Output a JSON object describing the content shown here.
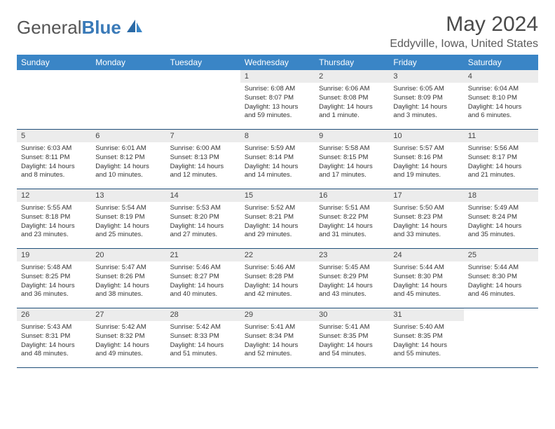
{
  "logo": {
    "text_left": "General",
    "text_right": "Blue"
  },
  "title": "May 2024",
  "location": "Eddyville, Iowa, United States",
  "colors": {
    "header_bg": "#3a85c6",
    "header_text": "#ffffff",
    "daynum_bg": "#ececec",
    "week_border": "#1f4e79",
    "logo_blue": "#3a7ab8"
  },
  "daynames": [
    "Sunday",
    "Monday",
    "Tuesday",
    "Wednesday",
    "Thursday",
    "Friday",
    "Saturday"
  ],
  "weeks": [
    [
      {
        "n": "",
        "sr": "",
        "ss": "",
        "dl": ""
      },
      {
        "n": "",
        "sr": "",
        "ss": "",
        "dl": ""
      },
      {
        "n": "",
        "sr": "",
        "ss": "",
        "dl": ""
      },
      {
        "n": "1",
        "sr": "Sunrise: 6:08 AM",
        "ss": "Sunset: 8:07 PM",
        "dl": "Daylight: 13 hours and 59 minutes."
      },
      {
        "n": "2",
        "sr": "Sunrise: 6:06 AM",
        "ss": "Sunset: 8:08 PM",
        "dl": "Daylight: 14 hours and 1 minute."
      },
      {
        "n": "3",
        "sr": "Sunrise: 6:05 AM",
        "ss": "Sunset: 8:09 PM",
        "dl": "Daylight: 14 hours and 3 minutes."
      },
      {
        "n": "4",
        "sr": "Sunrise: 6:04 AM",
        "ss": "Sunset: 8:10 PM",
        "dl": "Daylight: 14 hours and 6 minutes."
      }
    ],
    [
      {
        "n": "5",
        "sr": "Sunrise: 6:03 AM",
        "ss": "Sunset: 8:11 PM",
        "dl": "Daylight: 14 hours and 8 minutes."
      },
      {
        "n": "6",
        "sr": "Sunrise: 6:01 AM",
        "ss": "Sunset: 8:12 PM",
        "dl": "Daylight: 14 hours and 10 minutes."
      },
      {
        "n": "7",
        "sr": "Sunrise: 6:00 AM",
        "ss": "Sunset: 8:13 PM",
        "dl": "Daylight: 14 hours and 12 minutes."
      },
      {
        "n": "8",
        "sr": "Sunrise: 5:59 AM",
        "ss": "Sunset: 8:14 PM",
        "dl": "Daylight: 14 hours and 14 minutes."
      },
      {
        "n": "9",
        "sr": "Sunrise: 5:58 AM",
        "ss": "Sunset: 8:15 PM",
        "dl": "Daylight: 14 hours and 17 minutes."
      },
      {
        "n": "10",
        "sr": "Sunrise: 5:57 AM",
        "ss": "Sunset: 8:16 PM",
        "dl": "Daylight: 14 hours and 19 minutes."
      },
      {
        "n": "11",
        "sr": "Sunrise: 5:56 AM",
        "ss": "Sunset: 8:17 PM",
        "dl": "Daylight: 14 hours and 21 minutes."
      }
    ],
    [
      {
        "n": "12",
        "sr": "Sunrise: 5:55 AM",
        "ss": "Sunset: 8:18 PM",
        "dl": "Daylight: 14 hours and 23 minutes."
      },
      {
        "n": "13",
        "sr": "Sunrise: 5:54 AM",
        "ss": "Sunset: 8:19 PM",
        "dl": "Daylight: 14 hours and 25 minutes."
      },
      {
        "n": "14",
        "sr": "Sunrise: 5:53 AM",
        "ss": "Sunset: 8:20 PM",
        "dl": "Daylight: 14 hours and 27 minutes."
      },
      {
        "n": "15",
        "sr": "Sunrise: 5:52 AM",
        "ss": "Sunset: 8:21 PM",
        "dl": "Daylight: 14 hours and 29 minutes."
      },
      {
        "n": "16",
        "sr": "Sunrise: 5:51 AM",
        "ss": "Sunset: 8:22 PM",
        "dl": "Daylight: 14 hours and 31 minutes."
      },
      {
        "n": "17",
        "sr": "Sunrise: 5:50 AM",
        "ss": "Sunset: 8:23 PM",
        "dl": "Daylight: 14 hours and 33 minutes."
      },
      {
        "n": "18",
        "sr": "Sunrise: 5:49 AM",
        "ss": "Sunset: 8:24 PM",
        "dl": "Daylight: 14 hours and 35 minutes."
      }
    ],
    [
      {
        "n": "19",
        "sr": "Sunrise: 5:48 AM",
        "ss": "Sunset: 8:25 PM",
        "dl": "Daylight: 14 hours and 36 minutes."
      },
      {
        "n": "20",
        "sr": "Sunrise: 5:47 AM",
        "ss": "Sunset: 8:26 PM",
        "dl": "Daylight: 14 hours and 38 minutes."
      },
      {
        "n": "21",
        "sr": "Sunrise: 5:46 AM",
        "ss": "Sunset: 8:27 PM",
        "dl": "Daylight: 14 hours and 40 minutes."
      },
      {
        "n": "22",
        "sr": "Sunrise: 5:46 AM",
        "ss": "Sunset: 8:28 PM",
        "dl": "Daylight: 14 hours and 42 minutes."
      },
      {
        "n": "23",
        "sr": "Sunrise: 5:45 AM",
        "ss": "Sunset: 8:29 PM",
        "dl": "Daylight: 14 hours and 43 minutes."
      },
      {
        "n": "24",
        "sr": "Sunrise: 5:44 AM",
        "ss": "Sunset: 8:30 PM",
        "dl": "Daylight: 14 hours and 45 minutes."
      },
      {
        "n": "25",
        "sr": "Sunrise: 5:44 AM",
        "ss": "Sunset: 8:30 PM",
        "dl": "Daylight: 14 hours and 46 minutes."
      }
    ],
    [
      {
        "n": "26",
        "sr": "Sunrise: 5:43 AM",
        "ss": "Sunset: 8:31 PM",
        "dl": "Daylight: 14 hours and 48 minutes."
      },
      {
        "n": "27",
        "sr": "Sunrise: 5:42 AM",
        "ss": "Sunset: 8:32 PM",
        "dl": "Daylight: 14 hours and 49 minutes."
      },
      {
        "n": "28",
        "sr": "Sunrise: 5:42 AM",
        "ss": "Sunset: 8:33 PM",
        "dl": "Daylight: 14 hours and 51 minutes."
      },
      {
        "n": "29",
        "sr": "Sunrise: 5:41 AM",
        "ss": "Sunset: 8:34 PM",
        "dl": "Daylight: 14 hours and 52 minutes."
      },
      {
        "n": "30",
        "sr": "Sunrise: 5:41 AM",
        "ss": "Sunset: 8:35 PM",
        "dl": "Daylight: 14 hours and 54 minutes."
      },
      {
        "n": "31",
        "sr": "Sunrise: 5:40 AM",
        "ss": "Sunset: 8:35 PM",
        "dl": "Daylight: 14 hours and 55 minutes."
      },
      {
        "n": "",
        "sr": "",
        "ss": "",
        "dl": ""
      }
    ]
  ]
}
